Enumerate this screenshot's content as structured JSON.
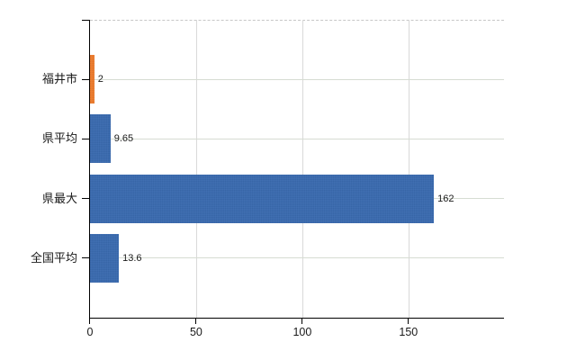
{
  "chart_data": {
    "type": "bar",
    "orientation": "horizontal",
    "title": "",
    "categories": [
      "福井市",
      "県平均",
      "県最大",
      "全国平均"
    ],
    "values": [
      2,
      9.65,
      162,
      13.6
    ],
    "value_labels": [
      "2",
      "9.65",
      "162",
      "13.6"
    ],
    "bar_colors": [
      "#ee7c2d",
      "#3a6bb0",
      "#3a6bb0",
      "#3a6bb0"
    ],
    "x_ticks": [
      0,
      50,
      100,
      150
    ],
    "x_tick_labels": [
      "0",
      "50",
      "100",
      "150"
    ],
    "xlim": [
      0,
      195
    ],
    "grid": "on",
    "legend": "none",
    "style_colors": {
      "accent_blue": "#3a6bb0",
      "accent_orange": "#ee7c2d",
      "axis": "#000000",
      "grid_horizontal": "#d6dcd2",
      "grid_vertical": "#d9d9d9",
      "top_border": "#c7c7c7",
      "background": "#ffffff",
      "text": "#1a1a1a"
    }
  }
}
